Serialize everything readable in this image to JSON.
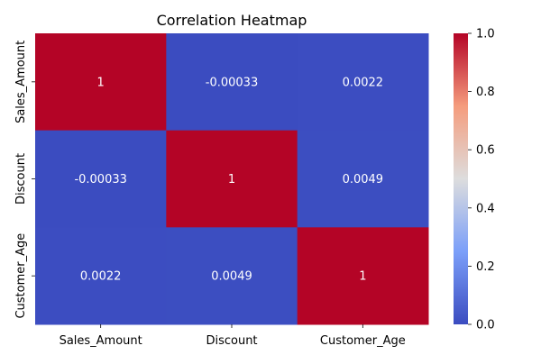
{
  "chart_data": {
    "type": "heatmap",
    "title": "Correlation Heatmap",
    "xlabel": "",
    "ylabel": "",
    "x_categories": [
      "Sales_Amount",
      "Discount",
      "Customer_Age"
    ],
    "y_categories": [
      "Sales_Amount",
      "Discount",
      "Customer_Age"
    ],
    "values": [
      [
        1,
        -0.00033,
        0.0022
      ],
      [
        -0.00033,
        1,
        0.0049
      ],
      [
        0.0022,
        0.0049,
        1
      ]
    ],
    "annotations": [
      [
        "1",
        "-0.00033",
        "0.0022"
      ],
      [
        "-0.00033",
        "1",
        "0.0049"
      ],
      [
        "0.0022",
        "0.0049",
        "1"
      ]
    ],
    "colormap": "coolwarm",
    "colorbar": {
      "range": [
        0.0,
        1.0
      ],
      "ticks": [
        "0.0",
        "0.2",
        "0.4",
        "0.6",
        "0.8",
        "1.0"
      ]
    }
  }
}
